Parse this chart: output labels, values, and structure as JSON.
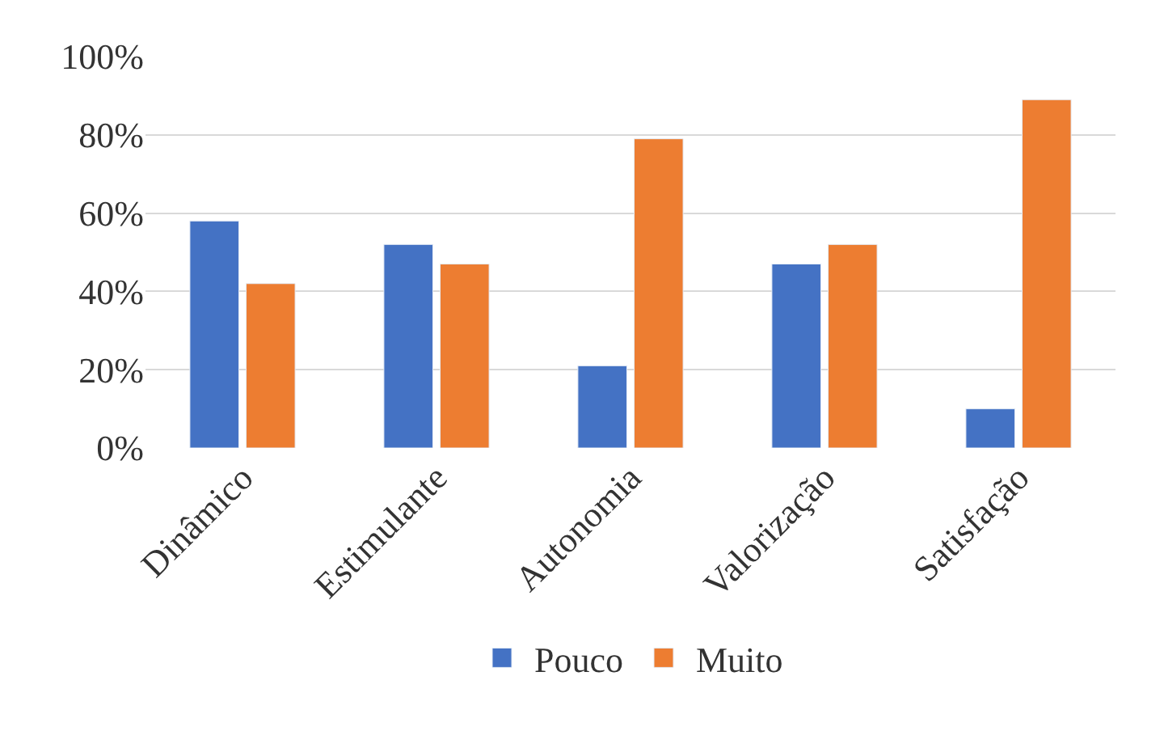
{
  "chart_data": {
    "type": "bar",
    "categories": [
      "Dinâmico",
      "Estimulante",
      "Autonomia",
      "Valorização",
      "Satisfação"
    ],
    "series": [
      {
        "name": "Pouco",
        "color": "#4472c4",
        "values": [
          58,
          52,
          21,
          47,
          10
        ]
      },
      {
        "name": "Muito",
        "color": "#ed7d31",
        "values": [
          42,
          47,
          79,
          52,
          89
        ]
      }
    ],
    "ylim": [
      0,
      100
    ],
    "yticks": [
      {
        "value": 0,
        "label": "0%"
      },
      {
        "value": 20,
        "label": "20%"
      },
      {
        "value": 40,
        "label": "40%"
      },
      {
        "value": 60,
        "label": "60%"
      },
      {
        "value": 80,
        "label": "80%"
      },
      {
        "value": 100,
        "label": "100%"
      }
    ],
    "grid": "y",
    "legend": "bottom"
  }
}
